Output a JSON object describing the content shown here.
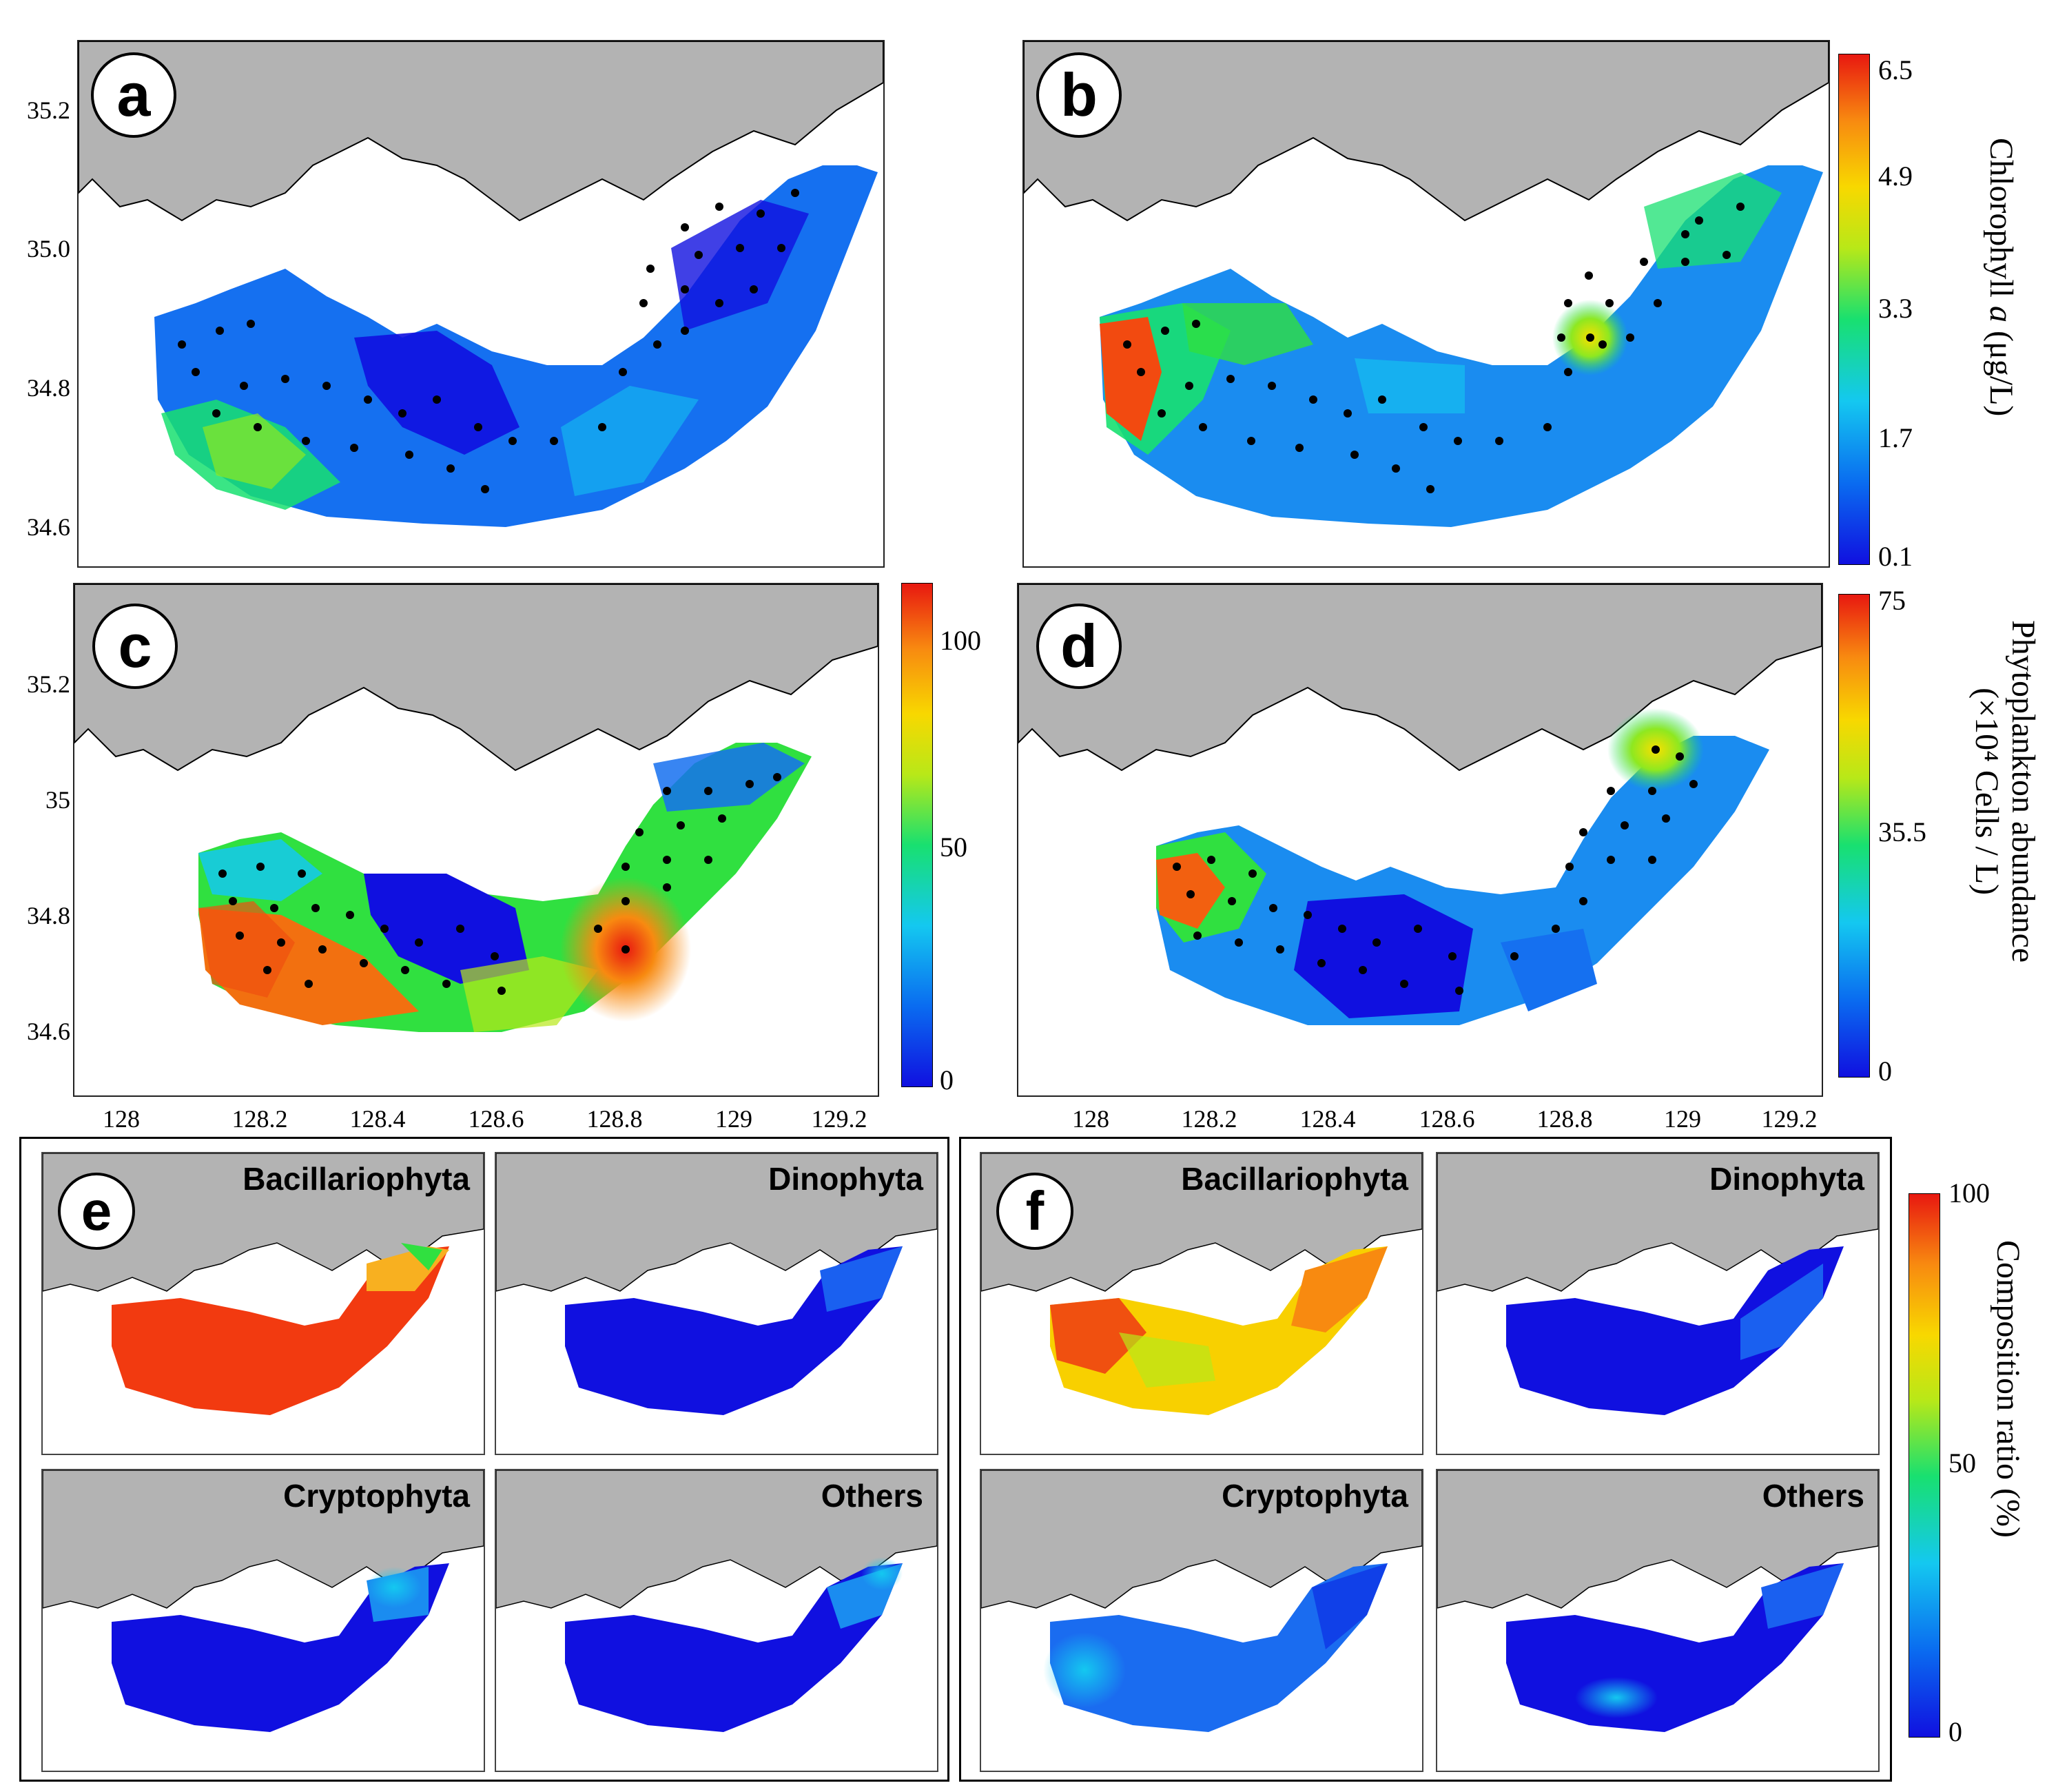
{
  "panels": {
    "a": {
      "letter": "a"
    },
    "b": {
      "letter": "b"
    },
    "c": {
      "letter": "c"
    },
    "d": {
      "letter": "d"
    },
    "e": {
      "letter": "e",
      "subpanels": [
        "Bacillariophyta",
        "Dinophyta",
        "Cryptophyta",
        "Others"
      ]
    },
    "f": {
      "letter": "f",
      "subpanels": [
        "Bacillariophyta",
        "Dinophyta",
        "Cryptophyta",
        "Others"
      ]
    }
  },
  "axes": {
    "top_lat_ticks": [
      "35.2",
      "35.0",
      "34.8",
      "34.6"
    ],
    "bottom_lat_ticks": [
      "35.2",
      "35",
      "34.8",
      "34.6"
    ],
    "lon_ticks": [
      "128",
      "128.2",
      "128.4",
      "128.6",
      "128.8",
      "129",
      "129.2"
    ]
  },
  "colorbars": {
    "chlorophyll": {
      "label_main": "Chlorophyll ",
      "label_italic": "a",
      "label_unit": " (μg/L)",
      "ticks": [
        "6.5",
        "4.9",
        "3.3",
        "1.7",
        "0.1"
      ]
    },
    "abundance_c": {
      "ticks": [
        "100",
        "50",
        "0"
      ]
    },
    "abundance_d": {
      "label_line1": "Phytoplankton abundance",
      "label_line2": "(×10⁴ Cells / L)",
      "ticks": [
        "75",
        "35.5",
        "0"
      ]
    },
    "composition": {
      "label": "Composition ratio (%)",
      "ticks": [
        "100",
        "50",
        "0"
      ]
    }
  },
  "colors": {
    "land": "#b3b3b3",
    "low": "#1010e0",
    "mid": "#18e070",
    "high": "#e81810"
  }
}
